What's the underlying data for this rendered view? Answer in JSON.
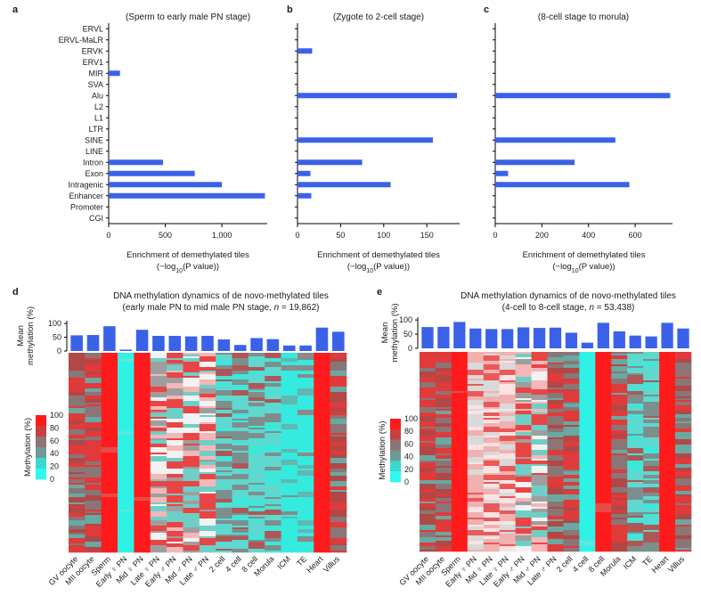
{
  "colors": {
    "bar": "#3a62e8",
    "heat_red": "#ff1a1a",
    "heat_cyan": "#2af0e4",
    "heat_gray": "#8a8a8a"
  },
  "chart_data": [
    {
      "id": "a",
      "type": "bar",
      "orientation": "horizontal",
      "panel_label": "a",
      "title": "(Sperm to early male PN stage)",
      "categories": [
        "ERVL",
        "ERVL-MaLR",
        "ERVK",
        "ERV1",
        "MIR",
        "SVA",
        "Alu",
        "L2",
        "L1",
        "LTR",
        "SINE",
        "LINE",
        "Intron",
        "Exon",
        "Intragenic",
        "Enhancer",
        "Promoter",
        "CGI"
      ],
      "values": [
        0,
        0,
        0,
        0,
        100,
        0,
        0,
        0,
        0,
        0,
        0,
        0,
        480,
        760,
        1000,
        1380,
        0,
        0
      ],
      "xlim": [
        0,
        1400
      ],
      "xticks": [
        "0",
        "500",
        "1,000"
      ],
      "xtick_values": [
        0,
        500,
        1000
      ],
      "xlabel_line1": "Enrichment of demethylated tiles",
      "xlabel_pre": "(−log",
      "xlabel_sub": "10",
      "xlabel_post": "(P value))"
    },
    {
      "id": "b",
      "type": "bar",
      "orientation": "horizontal",
      "panel_label": "b",
      "title": "(Zygote to 2-cell stage)",
      "categories": [
        "ERVL",
        "ERVL-MaLR",
        "ERVK",
        "ERV1",
        "MIR",
        "SVA",
        "Alu",
        "L2",
        "L1",
        "LTR",
        "SINE",
        "LINE",
        "Intron",
        "Exon",
        "Intragenic",
        "Enhancer",
        "Promoter",
        "CGI"
      ],
      "values": [
        0,
        0,
        17,
        0,
        0,
        0,
        185,
        0,
        0,
        0,
        157,
        0,
        75,
        15,
        108,
        16,
        0,
        0
      ],
      "xlim": [
        0,
        188
      ],
      "xticks": [
        "0",
        "50",
        "100",
        "150"
      ],
      "xtick_values": [
        0,
        50,
        100,
        150
      ],
      "xlabel_line1": "Enrichment of demethylated tiles",
      "xlabel_pre": "(−log",
      "xlabel_sub": "10",
      "xlabel_post": "(P value))"
    },
    {
      "id": "c",
      "type": "bar",
      "orientation": "horizontal",
      "panel_label": "c",
      "title": "(8-cell stage to morula)",
      "categories": [
        "ERVL",
        "ERVL-MaLR",
        "ERVK",
        "ERV1",
        "MIR",
        "SVA",
        "Alu",
        "L2",
        "L1",
        "LTR",
        "SINE",
        "LINE",
        "Intron",
        "Exon",
        "Intragenic",
        "Enhancer",
        "Promoter",
        "CGI"
      ],
      "values": [
        0,
        0,
        0,
        0,
        0,
        0,
        750,
        0,
        0,
        0,
        515,
        0,
        340,
        55,
        575,
        0,
        0,
        0
      ],
      "xlim": [
        0,
        760
      ],
      "xticks": [
        "0",
        "200",
        "400",
        "600"
      ],
      "xtick_values": [
        0,
        200,
        400,
        600
      ],
      "xlabel_line1": "Enrichment of demethylated tiles",
      "xlabel_pre": "(−log",
      "xlabel_sub": "10",
      "xlabel_post": "(P value))"
    },
    {
      "id": "d",
      "type": "heatmap",
      "panel_label": "d",
      "title_line1": "DNA methylation dynamics of de novo-methylated tiles",
      "title_line2_pre": "(early male PN to mid male PN stage, ",
      "title_line2_n": "n",
      "title_line2_post": " = 19,862)",
      "bar_ylabel_1": "Mean",
      "bar_ylabel_2": "methylation (%)",
      "bar_yticks": [
        "0",
        "50",
        "100"
      ],
      "bar_ytick_values": [
        0,
        50,
        100
      ],
      "bar_ylim": [
        0,
        110
      ],
      "colorbar_label": "Methylation (%)",
      "colorbar_ticks": [
        "100",
        "80",
        "60",
        "40",
        "20",
        "0"
      ],
      "samples": [
        "GV oocyte",
        "MII oocyte",
        "Sperm",
        "Early ♀ PN",
        "Mid ♀ PN",
        "Late ♀ PN",
        "Early ♂ PN",
        "Mid ♂ PN",
        "Late ♂ PN",
        "2 cell",
        "4 cell",
        "8 cell",
        "Morula",
        "ICM",
        "TE",
        "Heart",
        "Villus"
      ],
      "mean_methylation": [
        57,
        58,
        90,
        5,
        77,
        55,
        55,
        53,
        55,
        42,
        22,
        47,
        43,
        20,
        20,
        85,
        70
      ],
      "column_patterns": [
        "gr",
        "gr",
        "red",
        "cyan",
        "red",
        "wm",
        "wm",
        "wm",
        "wm",
        "tg",
        "tg",
        "tg",
        "tg",
        "ct",
        "ct",
        "red",
        "gr"
      ]
    },
    {
      "id": "e",
      "type": "heatmap",
      "panel_label": "e",
      "title_line1": "DNA methylation dynamics of de novo-methylated tiles",
      "title_line2_pre": "(4-cell to 8-cell stage, ",
      "title_line2_n": "n",
      "title_line2_post": " = 53,438)",
      "bar_ylabel_1": "Mean",
      "bar_ylabel_2": "methylation (%)",
      "bar_yticks": [
        "0",
        "50",
        "100"
      ],
      "bar_ytick_values": [
        0,
        50,
        100
      ],
      "bar_ylim": [
        0,
        110
      ],
      "colorbar_label": "Methylation (%)",
      "colorbar_ticks": [
        "100",
        "80",
        "60",
        "40",
        "20",
        "0"
      ],
      "samples": [
        "GV oocyte",
        "MII oocyte",
        "Sperm",
        "Early ♀ PN",
        "Mid ♀ PN",
        "Late ♀ PN",
        "Early ♂ PN",
        "Mid ♂ PN",
        "Late ♂ PN",
        "2 cell",
        "4 cell",
        "8 cell",
        "Morula",
        "ICM",
        "TE",
        "Heart",
        "Villus"
      ],
      "mean_methylation": [
        75,
        76,
        93,
        70,
        68,
        68,
        74,
        72,
        73,
        55,
        20,
        90,
        60,
        45,
        42,
        90,
        70
      ],
      "column_patterns": [
        "gr",
        "gr",
        "red",
        "lt",
        "lt",
        "lt",
        "wm",
        "wm",
        "gr",
        "gr",
        "cyan",
        "red",
        "gr",
        "tg",
        "tg",
        "red",
        "gr"
      ]
    }
  ]
}
